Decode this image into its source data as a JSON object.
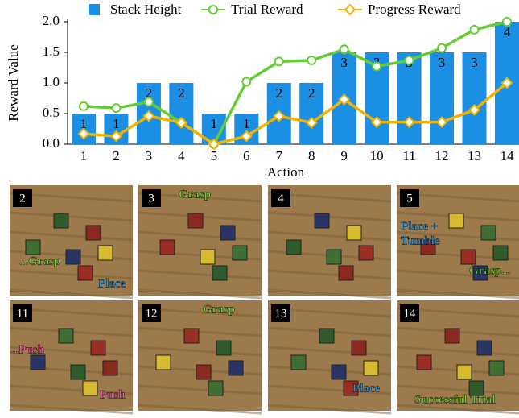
{
  "chart_data": {
    "type": "bar-line",
    "x_label": "Action",
    "y_label": "Reward Value",
    "categories": [
      "1",
      "2",
      "3",
      "4",
      "5",
      "6",
      "7",
      "8",
      "9",
      "10",
      "11",
      "12",
      "13",
      "14"
    ],
    "ylim": [
      0,
      2.0
    ],
    "yticks": [
      {
        "value": 0,
        "label": "0.0"
      },
      {
        "value": 0.5,
        "label": "0.5"
      },
      {
        "value": 1.0,
        "label": "1.0"
      },
      {
        "value": 1.5,
        "label": "1.5"
      },
      {
        "value": 2.0,
        "label": "2.0"
      }
    ],
    "y2lim": [
      0,
      4
    ],
    "series": [
      {
        "name": "Stack Height",
        "color": "#1a8fe3",
        "kind": "bar",
        "axis": "y2",
        "values": [
          1,
          1,
          2,
          2,
          1,
          1,
          2,
          2,
          3,
          3,
          3,
          3,
          3,
          4
        ]
      },
      {
        "name": "Trial Reward",
        "color": "#66cc33",
        "kind": "line",
        "marker": "circle",
        "values": [
          0.62,
          0.59,
          0.69,
          0.35,
          0.0,
          1.02,
          1.35,
          1.37,
          1.55,
          1.27,
          1.37,
          1.57,
          1.87,
          2.0
        ]
      },
      {
        "name": "Progress Reward",
        "color": "#f0b400",
        "kind": "line",
        "marker": "diamond",
        "values": [
          0.17,
          0.13,
          0.46,
          0.35,
          0.0,
          0.13,
          0.46,
          0.35,
          0.73,
          0.36,
          0.36,
          0.36,
          0.56,
          1.0
        ]
      }
    ]
  },
  "panels": [
    {
      "label": "2",
      "annotations": [
        {
          "text": "...Grasp",
          "color": "#66cc33"
        },
        {
          "text": "Place",
          "color": "#1a8fe3"
        }
      ]
    },
    {
      "label": "3",
      "annotations": [
        {
          "text": "Grasp",
          "color": "#66cc33"
        }
      ]
    },
    {
      "label": "4",
      "annotations": []
    },
    {
      "label": "5",
      "annotations": [
        {
          "text": "Place +",
          "color": "#1a8fe3"
        },
        {
          "text": "Tumble",
          "color": "#1a8fe3"
        },
        {
          "text": "Grasp...",
          "color": "#66cc33"
        }
      ]
    },
    {
      "label": "11",
      "annotations": [
        {
          "text": "...Push",
          "color": "#e8559e"
        },
        {
          "text": "Push",
          "color": "#e8559e"
        }
      ]
    },
    {
      "label": "12",
      "annotations": [
        {
          "text": "Grasp",
          "color": "#66cc33"
        }
      ]
    },
    {
      "label": "13",
      "annotations": [
        {
          "text": "Place",
          "color": "#1a8fe3"
        }
      ]
    },
    {
      "label": "14",
      "annotations": [
        {
          "text": "Successful Trial",
          "color": "#66cc33"
        }
      ]
    }
  ]
}
